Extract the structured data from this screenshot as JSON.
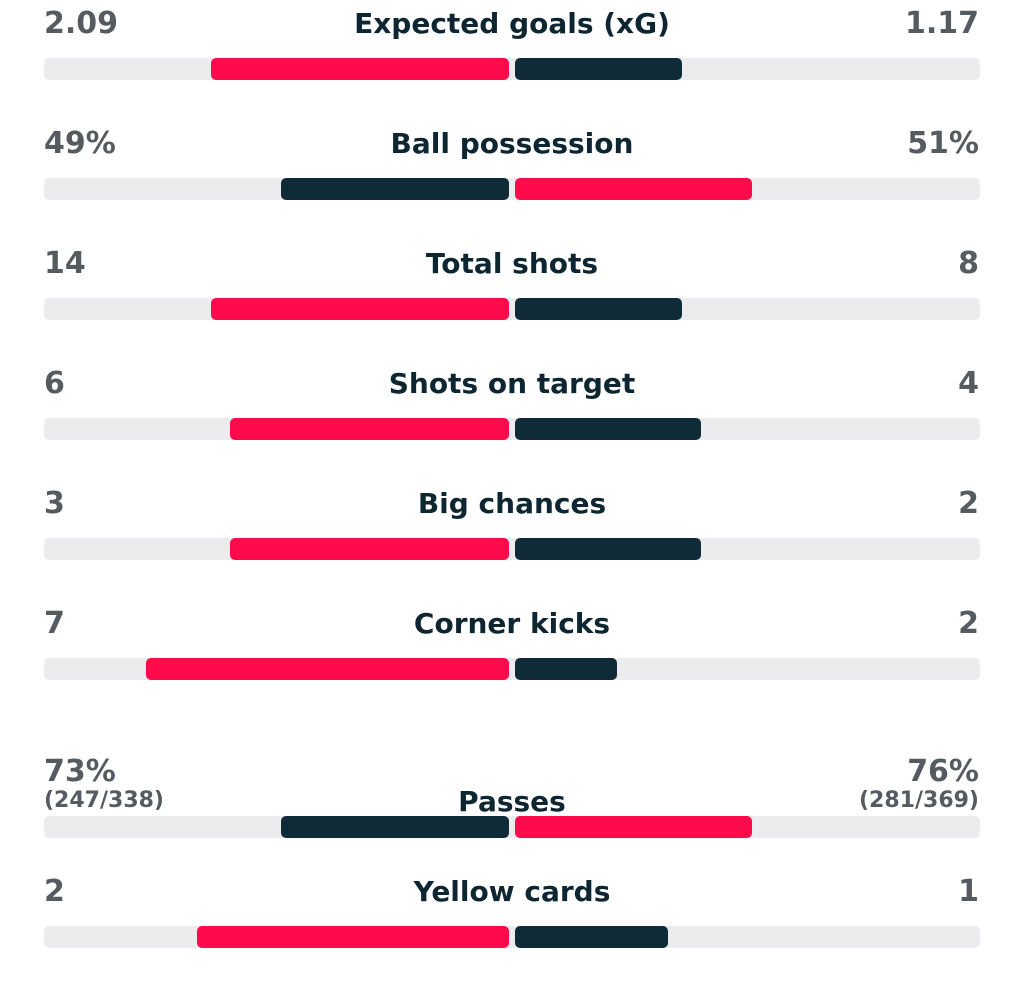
{
  "colors": {
    "winner": "#ff0a4a",
    "loser": "#102b38",
    "track": "#ececee",
    "value_text": "#555b61",
    "label_text": "#0e2632"
  },
  "stats": [
    {
      "label": "Expected goals (xG)",
      "home": "2.09",
      "away": "1.17",
      "home_share": 0.64,
      "away_share": 0.36,
      "home_leads": true
    },
    {
      "label": "Ball possession",
      "home": "49%",
      "away": "51%",
      "home_share": 0.49,
      "away_share": 0.51,
      "home_leads": false
    },
    {
      "label": "Total shots",
      "home": "14",
      "away": "8",
      "home_share": 0.64,
      "away_share": 0.36,
      "home_leads": true
    },
    {
      "label": "Shots on target",
      "home": "6",
      "away": "4",
      "home_share": 0.6,
      "away_share": 0.4,
      "home_leads": true
    },
    {
      "label": "Big chances",
      "home": "3",
      "away": "2",
      "home_share": 0.6,
      "away_share": 0.4,
      "home_leads": true
    },
    {
      "label": "Corner kicks",
      "home": "7",
      "away": "2",
      "home_share": 0.78,
      "away_share": 0.22,
      "home_leads": true
    },
    {
      "label": "Passes",
      "home": "73%",
      "away": "76%",
      "home_detail": "(247/338)",
      "away_detail": "(281/369)",
      "home_share": 0.49,
      "away_share": 0.51,
      "home_leads": false
    },
    {
      "label": "Yellow cards",
      "home": "2",
      "away": "1",
      "home_share": 0.67,
      "away_share": 0.33,
      "home_leads": true
    }
  ]
}
